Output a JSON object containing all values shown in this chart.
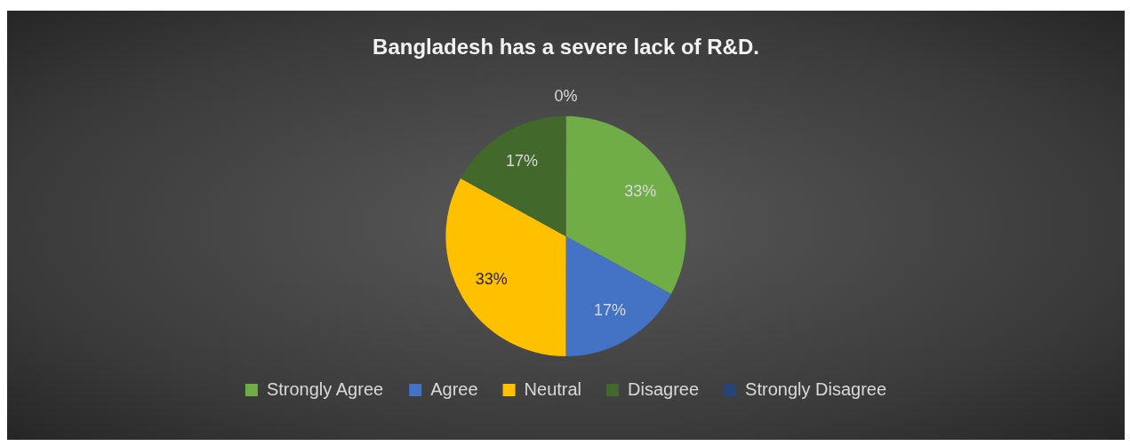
{
  "chart_data": {
    "type": "pie",
    "title": "Bangladesh has a severe lack of R&D.",
    "categories": [
      "Strongly Agree",
      "Agree",
      "Neutral",
      "Disagree",
      "Strongly Disagree"
    ],
    "values": [
      33,
      17,
      33,
      17,
      0
    ],
    "colors": [
      "#70ad47",
      "#4472c4",
      "#ffc000",
      "#43682b",
      "#264478"
    ],
    "value_labels": [
      "33%",
      "17%",
      "33%",
      "17%",
      "0%"
    ],
    "legend": "bottom"
  }
}
